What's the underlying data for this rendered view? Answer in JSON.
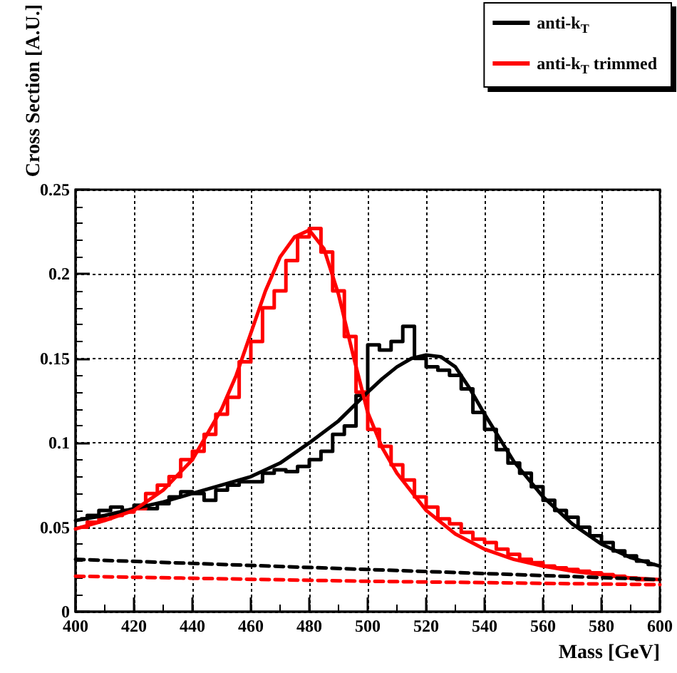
{
  "chart_data": {
    "type": "line",
    "xlabel": "Mass [GeV]",
    "ylabel": "Cross Section [A.U.]",
    "xlim": [
      400,
      600
    ],
    "xticks": [
      400,
      420,
      440,
      460,
      480,
      500,
      520,
      540,
      560,
      580,
      600
    ],
    "ylim": [
      0,
      0.25
    ],
    "yticks": [
      0,
      0.05,
      0.1,
      0.15,
      0.2,
      0.25
    ],
    "grid": true,
    "legend": "top right",
    "marker": "none",
    "series": [
      {
        "type": "step",
        "color": "#000000",
        "x": [
          402,
          406,
          410,
          414,
          418,
          422,
          426,
          430,
          434,
          438,
          442,
          446,
          450,
          454,
          458,
          462,
          466,
          470,
          474,
          478,
          482,
          486,
          490,
          494,
          498,
          502,
          506,
          510,
          514,
          518,
          522,
          526,
          530,
          534,
          538,
          542,
          546,
          550,
          554,
          558,
          562,
          566,
          570,
          574,
          578,
          582,
          586,
          590,
          594,
          598
        ],
        "values": [
          0.055,
          0.057,
          0.06,
          0.062,
          0.06,
          0.063,
          0.061,
          0.064,
          0.068,
          0.071,
          0.07,
          0.066,
          0.072,
          0.075,
          0.077,
          0.077,
          0.082,
          0.084,
          0.083,
          0.086,
          0.09,
          0.095,
          0.105,
          0.11,
          0.128,
          0.158,
          0.155,
          0.16,
          0.169,
          0.15,
          0.145,
          0.143,
          0.14,
          0.132,
          0.118,
          0.108,
          0.096,
          0.088,
          0.082,
          0.074,
          0.066,
          0.06,
          0.056,
          0.05,
          0.045,
          0.041,
          0.036,
          0.033,
          0.03,
          0.028
        ]
      },
      {
        "type": "step",
        "color": "#ff0000",
        "x": [
          402,
          406,
          410,
          414,
          418,
          422,
          426,
          430,
          434,
          438,
          442,
          446,
          450,
          454,
          458,
          462,
          466,
          470,
          474,
          478,
          482,
          486,
          490,
          494,
          498,
          502,
          506,
          510,
          514,
          518,
          522,
          526,
          530,
          534,
          538,
          542,
          546,
          550,
          554,
          558,
          562,
          566,
          570,
          574,
          578,
          582,
          586,
          590,
          594,
          598
        ],
        "values": [
          0.05,
          0.053,
          0.055,
          0.057,
          0.059,
          0.061,
          0.07,
          0.075,
          0.08,
          0.09,
          0.095,
          0.105,
          0.117,
          0.127,
          0.148,
          0.16,
          0.18,
          0.19,
          0.208,
          0.222,
          0.227,
          0.213,
          0.19,
          0.163,
          0.13,
          0.108,
          0.098,
          0.087,
          0.078,
          0.068,
          0.062,
          0.055,
          0.052,
          0.047,
          0.043,
          0.041,
          0.037,
          0.034,
          0.031,
          0.029,
          0.027,
          0.026,
          0.025,
          0.024,
          0.023,
          0.022,
          0.021,
          0.02,
          0.019,
          0.019
        ]
      },
      {
        "name": "anti-k$_{T}$",
        "color": "#000000",
        "line_style": "solid",
        "x": [
          400,
          410,
          420,
          430,
          440,
          450,
          460,
          470,
          480,
          490,
          500,
          505,
          510,
          515,
          520,
          525,
          530,
          535,
          540,
          550,
          560,
          570,
          580,
          590,
          600
        ],
        "values": [
          0.054,
          0.057,
          0.061,
          0.065,
          0.07,
          0.075,
          0.08,
          0.088,
          0.1,
          0.113,
          0.13,
          0.138,
          0.145,
          0.15,
          0.152,
          0.151,
          0.145,
          0.132,
          0.117,
          0.089,
          0.068,
          0.052,
          0.04,
          0.032,
          0.027
        ]
      },
      {
        "name": "anti-k$_{T}$ trimmed",
        "color": "#ff0000",
        "line_style": "solid",
        "x": [
          400,
          410,
          420,
          430,
          440,
          450,
          455,
          460,
          465,
          470,
          475,
          480,
          485,
          490,
          495,
          500,
          505,
          510,
          520,
          530,
          540,
          550,
          560,
          570,
          580,
          590,
          600
        ],
        "values": [
          0.049,
          0.054,
          0.06,
          0.072,
          0.09,
          0.12,
          0.14,
          0.165,
          0.19,
          0.21,
          0.222,
          0.226,
          0.215,
          0.188,
          0.152,
          0.118,
          0.097,
          0.082,
          0.06,
          0.046,
          0.037,
          0.031,
          0.027,
          0.024,
          0.022,
          0.02,
          0.019
        ]
      },
      {
        "color": "#000000",
        "line_style": "dashed",
        "x": [
          400,
          500,
          600
        ],
        "values": [
          0.031,
          0.025,
          0.019
        ]
      },
      {
        "color": "#ff0000",
        "line_style": "dashed",
        "x": [
          400,
          500,
          600
        ],
        "values": [
          0.021,
          0.018,
          0.016
        ]
      }
    ]
  }
}
